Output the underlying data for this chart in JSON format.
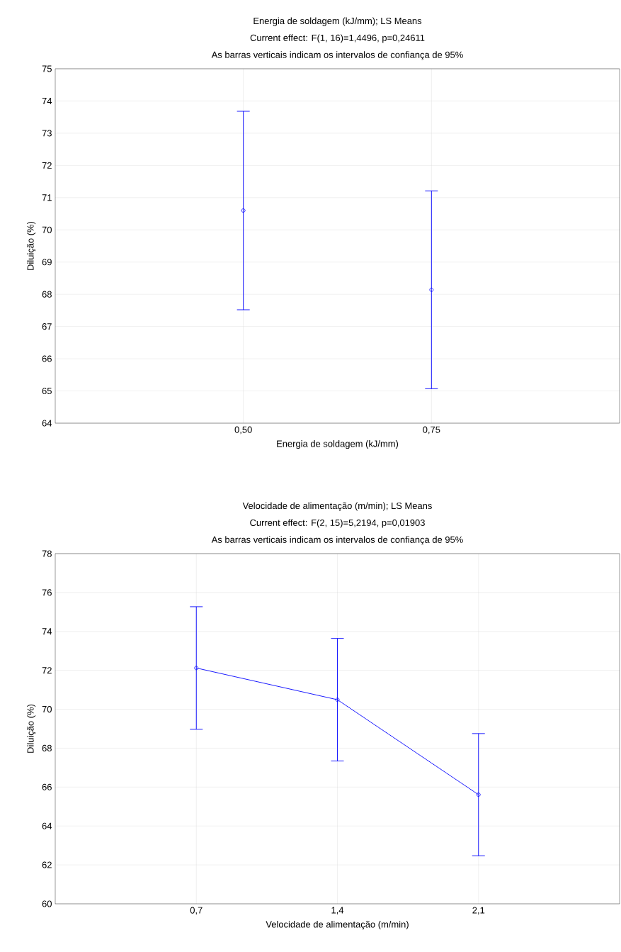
{
  "chart_data": [
    {
      "type": "scatter",
      "title": "Energia de soldagem (kJ/mm); LS Means",
      "subtitle": "Current effect: F(1, 16)=1,4496, p=0,24611",
      "annotations": [
        "As barras verticais indicam os intervalos de confiança de 95%"
      ],
      "xlabel": "Energia de soldagem (kJ/mm)",
      "ylabel": "Diluição (%)",
      "categories": [
        "0,50",
        "0,75"
      ],
      "series": [
        {
          "color": "#0000ff",
          "values": [
            70.6,
            68.14
          ],
          "errors": [
            3.08,
            3.07
          ]
        }
      ],
      "ylim": [
        64,
        75
      ],
      "yticks": [
        64,
        65,
        66,
        67,
        68,
        69,
        70,
        71,
        72,
        73,
        74,
        75
      ],
      "grid": true,
      "marker": "circle"
    },
    {
      "type": "line",
      "title": "Velocidade de alimentação (m/min); LS Means",
      "subtitle": "Current effect: F(2, 15)=5,2194, p=0,01903",
      "annotations": [
        "As barras verticais indicam os intervalos de confiança de 95%"
      ],
      "xlabel": "Velocidade de alimentação (m/min)",
      "ylabel": "Diluição (%)",
      "categories": [
        "0,7",
        "1,4",
        "2,1"
      ],
      "series": [
        {
          "color": "#0000ff",
          "values": [
            72.12,
            70.49,
            65.61
          ],
          "errors": [
            3.15,
            3.15,
            3.14
          ]
        }
      ],
      "ylim": [
        60,
        78
      ],
      "yticks": [
        60,
        62,
        64,
        66,
        68,
        70,
        72,
        74,
        76,
        78
      ],
      "grid": true,
      "marker": "circle"
    }
  ]
}
